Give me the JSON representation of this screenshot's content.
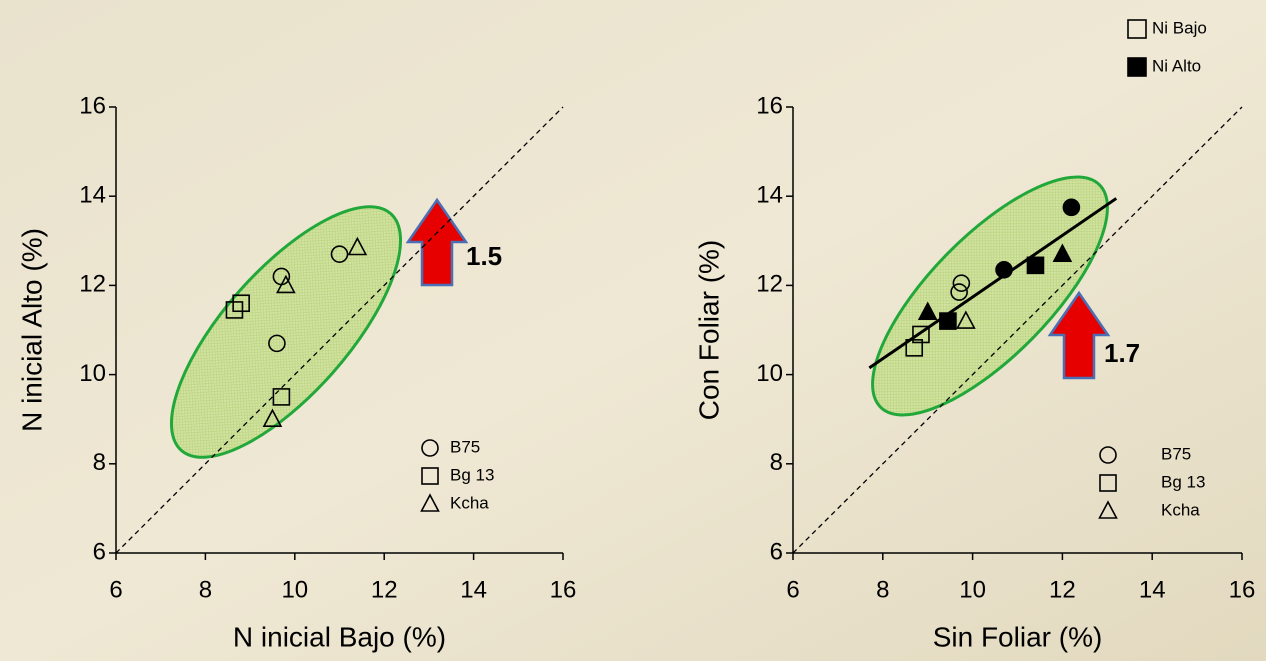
{
  "chart_data": [
    {
      "type": "scatter",
      "x_label": "N inicial Bajo (%)",
      "y_label": "N inicial Alto (%)",
      "xlim": [
        6,
        16
      ],
      "ylim": [
        6,
        16
      ],
      "xticks": [
        6,
        8,
        10,
        12,
        14,
        16
      ],
      "yticks": [
        6,
        8,
        10,
        12,
        14,
        16
      ],
      "annotation": 1.5,
      "series": [
        {
          "name": "B75",
          "marker": "circle",
          "x": [
            9.7,
            11.0,
            9.6
          ],
          "y": [
            12.2,
            12.7,
            10.7
          ],
          "filled": [
            false,
            false,
            false
          ]
        },
        {
          "name": "Bg 13",
          "marker": "square",
          "x": [
            8.8,
            8.65,
            9.7
          ],
          "y": [
            11.6,
            11.45,
            9.5
          ],
          "filled": [
            false,
            false,
            false
          ]
        },
        {
          "name": "Kcha",
          "marker": "triangle",
          "x": [
            11.4,
            9.8,
            9.5
          ],
          "y": [
            12.85,
            12.0,
            9.0
          ],
          "filled": [
            false,
            false,
            false
          ]
        }
      ]
    },
    {
      "type": "scatter",
      "x_label": "Sin Foliar (%)",
      "y_label": "Con Foliar  (%)",
      "xlim": [
        6,
        16
      ],
      "ylim": [
        6,
        16
      ],
      "xticks": [
        6,
        8,
        10,
        12,
        14,
        16
      ],
      "yticks": [
        6,
        8,
        10,
        12,
        14,
        16
      ],
      "annotation": 1.7,
      "fill_legend": [
        {
          "name": "Ni Bajo",
          "filled": false
        },
        {
          "name": "Ni Alto",
          "filled": true
        }
      ],
      "trendline": {
        "x": [
          7.7,
          13.2
        ],
        "y": [
          10.15,
          13.95
        ]
      },
      "series": [
        {
          "name": "B75",
          "marker": "circle",
          "x": [
            9.7,
            9.75,
            10.7,
            12.2
          ],
          "y": [
            11.85,
            12.05,
            12.35,
            13.75
          ],
          "filled": [
            false,
            false,
            true,
            true
          ]
        },
        {
          "name": "Bg 13",
          "marker": "square",
          "x": [
            8.7,
            8.85,
            9.45,
            11.4
          ],
          "y": [
            10.6,
            10.9,
            11.2,
            12.45
          ],
          "filled": [
            false,
            false,
            true,
            true
          ]
        },
        {
          "name": "Kcha",
          "marker": "triangle",
          "x": [
            9.85,
            9.0,
            12.0
          ],
          "y": [
            11.2,
            11.4,
            12.7
          ],
          "filled": [
            false,
            true,
            true
          ]
        }
      ]
    }
  ]
}
